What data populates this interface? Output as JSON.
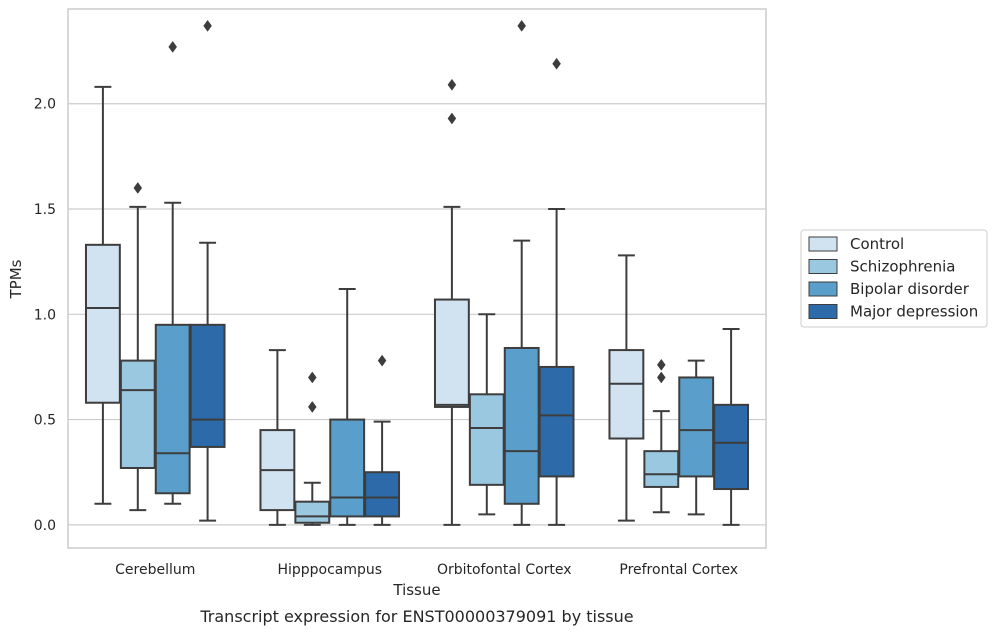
{
  "caption": "Transcript expression for ENST00000379091 by tissue",
  "chart_data": {
    "type": "box",
    "title": "",
    "xlabel": "Tissue",
    "ylabel": "TPMs",
    "ylim": [
      -0.11,
      2.45
    ],
    "yticks": [
      0.0,
      0.5,
      1.0,
      1.5,
      2.0
    ],
    "ytick_labels": [
      "0.0",
      "0.5",
      "1.0",
      "1.5",
      "2.0"
    ],
    "grid": "y",
    "legend_position": "right",
    "categories": [
      "Cerebellum",
      "Hipppocampus",
      "Orbitofontal Cortex",
      "Prefrontal Cortex"
    ],
    "series": [
      {
        "name": "Control",
        "color": "#d1e2f1",
        "boxes": [
          {
            "whislo": 0.1,
            "q1": 0.58,
            "med": 1.03,
            "q3": 1.33,
            "whishi": 2.08,
            "fliers": []
          },
          {
            "whislo": 0.0,
            "q1": 0.07,
            "med": 0.26,
            "q3": 0.45,
            "whishi": 0.83,
            "fliers": []
          },
          {
            "whislo": 0.0,
            "q1": 0.56,
            "med": 0.57,
            "q3": 1.07,
            "whishi": 1.51,
            "fliers": [
              1.93,
              2.09
            ]
          },
          {
            "whislo": 0.02,
            "q1": 0.41,
            "med": 0.67,
            "q3": 0.83,
            "whishi": 1.28,
            "fliers": []
          }
        ]
      },
      {
        "name": "Schizophrenia",
        "color": "#9ac8e0",
        "boxes": [
          {
            "whislo": 0.07,
            "q1": 0.27,
            "med": 0.64,
            "q3": 0.78,
            "whishi": 1.51,
            "fliers": [
              1.6
            ]
          },
          {
            "whislo": 0.0,
            "q1": 0.01,
            "med": 0.04,
            "q3": 0.11,
            "whishi": 0.2,
            "fliers": [
              0.56,
              0.7
            ]
          },
          {
            "whislo": 0.05,
            "q1": 0.19,
            "med": 0.46,
            "q3": 0.62,
            "whishi": 1.0,
            "fliers": []
          },
          {
            "whislo": 0.06,
            "q1": 0.18,
            "med": 0.24,
            "q3": 0.35,
            "whishi": 0.54,
            "fliers": [
              0.7,
              0.76
            ]
          }
        ]
      },
      {
        "name": "Bipolar disorder",
        "color": "#5a9fcb",
        "boxes": [
          {
            "whislo": 0.1,
            "q1": 0.15,
            "med": 0.34,
            "q3": 0.95,
            "whishi": 1.53,
            "fliers": [
              2.27
            ]
          },
          {
            "whislo": 0.0,
            "q1": 0.04,
            "med": 0.13,
            "q3": 0.5,
            "whishi": 1.12,
            "fliers": []
          },
          {
            "whislo": 0.0,
            "q1": 0.1,
            "med": 0.35,
            "q3": 0.84,
            "whishi": 1.35,
            "fliers": [
              2.37
            ]
          },
          {
            "whislo": 0.05,
            "q1": 0.23,
            "med": 0.45,
            "q3": 0.7,
            "whishi": 0.78,
            "fliers": []
          }
        ]
      },
      {
        "name": "Major depression",
        "color": "#2c6aaa",
        "boxes": [
          {
            "whislo": 0.02,
            "q1": 0.37,
            "med": 0.5,
            "q3": 0.95,
            "whishi": 1.34,
            "fliers": [
              2.37
            ]
          },
          {
            "whislo": 0.0,
            "q1": 0.04,
            "med": 0.13,
            "q3": 0.25,
            "whishi": 0.49,
            "fliers": [
              0.78
            ]
          },
          {
            "whislo": 0.0,
            "q1": 0.23,
            "med": 0.52,
            "q3": 0.75,
            "whishi": 1.5,
            "fliers": [
              2.19
            ]
          },
          {
            "whislo": 0.0,
            "q1": 0.17,
            "med": 0.39,
            "q3": 0.57,
            "whishi": 0.93,
            "fliers": []
          }
        ]
      }
    ]
  }
}
